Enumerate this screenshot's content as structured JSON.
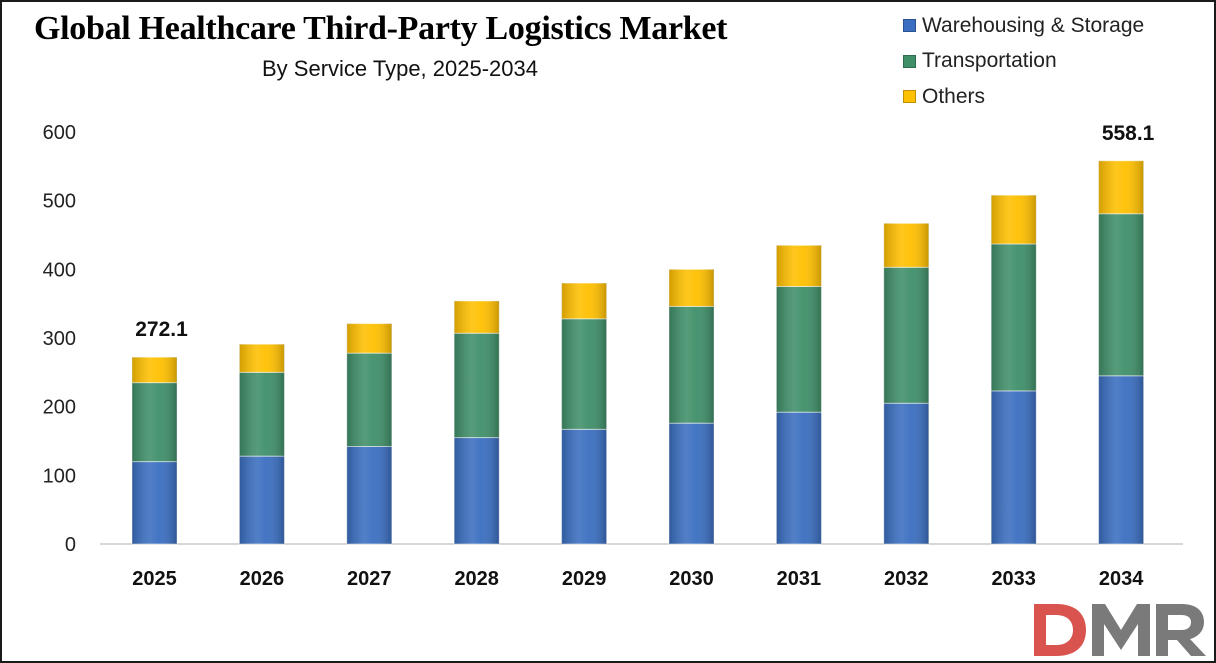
{
  "chart_data": {
    "type": "bar",
    "stacked": true,
    "title": "Global Healthcare Third-Party Logistics Market",
    "subtitle": "By Service Type, 2025-2034",
    "categories": [
      "2025",
      "2026",
      "2027",
      "2028",
      "2029",
      "2030",
      "2031",
      "2032",
      "2033",
      "2034"
    ],
    "series": [
      {
        "name": "Warehousing & Storage",
        "color": "#3a6ec0",
        "values": [
          120,
          128,
          142,
          155,
          167,
          176,
          192,
          205,
          223,
          245
        ]
      },
      {
        "name": "Transportation",
        "color": "#3f8f69",
        "values": [
          115,
          122,
          136,
          152,
          161,
          170,
          183,
          198,
          214,
          236
        ]
      },
      {
        "name": "Others",
        "color": "#ffc000",
        "values": [
          37.1,
          41,
          43,
          47,
          52,
          54,
          60,
          64,
          71,
          77.1
        ]
      }
    ],
    "totals_labels": [
      {
        "category": "2025",
        "text": "272.1"
      },
      {
        "category": "2034",
        "text": "558.1"
      }
    ],
    "yticks": [
      "0",
      "100",
      "200",
      "300",
      "400",
      "500",
      "600"
    ],
    "ylim": [
      0,
      600
    ],
    "xlabel": "",
    "ylabel": "",
    "grid": false,
    "legend_position": "top-right"
  },
  "logo": {
    "text": "DMR"
  }
}
